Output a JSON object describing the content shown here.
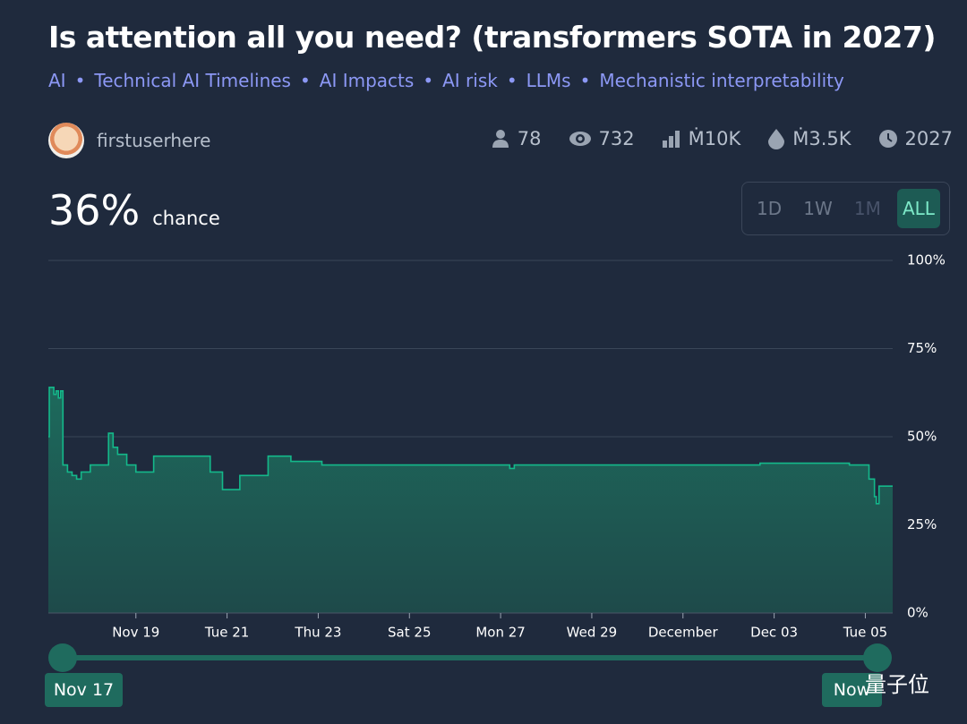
{
  "header": {
    "title": "Is attention all you need? (transformers SOTA in 2027)",
    "tags": [
      "AI",
      "Technical AI Timelines",
      "AI Impacts",
      "AI risk",
      "LLMs",
      "Mechanistic interpretability"
    ],
    "author": "firstuserhere",
    "stats": [
      "78",
      "732",
      "Ṁ10K",
      "Ṁ3.5K",
      "2027"
    ]
  },
  "probability": {
    "value": "36%",
    "label": "chance"
  },
  "range_buttons": [
    "1D",
    "1W",
    "1M",
    "ALL"
  ],
  "active_range": 3,
  "chart_data": {
    "type": "line",
    "color": "#14b88a",
    "x": [
      17.08,
      17.1,
      17.2,
      17.25,
      17.3,
      17.35,
      17.4,
      17.5,
      17.6,
      17.7,
      17.8,
      18.0,
      18.4,
      18.5,
      18.6,
      18.8,
      19.0,
      19.39,
      20.63,
      20.9,
      21.28,
      21.9,
      22.4,
      23.08,
      24.06,
      27.2,
      27.3,
      29.75,
      32.69,
      34.65,
      35.08,
      35.2,
      35.24,
      35.3,
      35.57
    ],
    "values": [
      50,
      64,
      62,
      63,
      61,
      63,
      42,
      40,
      39,
      38,
      40,
      42,
      51,
      47,
      45,
      42,
      40,
      44.5,
      40,
      35,
      39,
      44.5,
      43,
      42,
      42,
      41,
      42,
      42,
      42.5,
      42,
      38,
      33,
      31,
      36,
      36
    ],
    "xlim": [
      17.08,
      35.6
    ],
    "xticks": [
      {
        "value": 19,
        "label": "Nov 19"
      },
      {
        "value": 21,
        "label": "Tue 21"
      },
      {
        "value": 23,
        "label": "Thu 23"
      },
      {
        "value": 25,
        "label": "Sat 25"
      },
      {
        "value": 27,
        "label": "Mon 27"
      },
      {
        "value": 29,
        "label": "Wed 29"
      },
      {
        "value": 31,
        "label": "December"
      },
      {
        "value": 33,
        "label": "Dec 03"
      },
      {
        "value": 35,
        "label": "Tue 05"
      }
    ],
    "ylim": [
      0,
      100
    ],
    "yticks": [
      {
        "value": 0,
        "label": "0%"
      },
      {
        "value": 25,
        "label": "25%"
      },
      {
        "value": 50,
        "label": "50%"
      },
      {
        "value": 75,
        "label": "75%"
      },
      {
        "value": 100,
        "label": "100%"
      }
    ],
    "grid": true
  },
  "slider": {
    "start": "Nov 17",
    "end": "Now"
  },
  "watermark": "量子位"
}
